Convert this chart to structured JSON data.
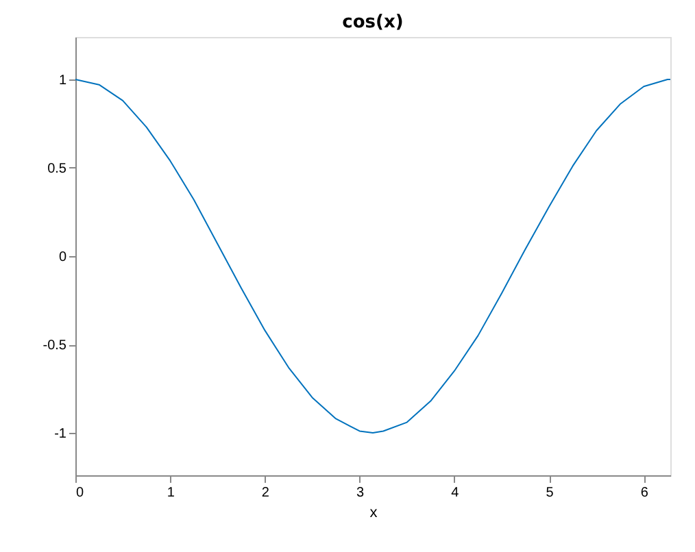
{
  "chart_data": {
    "type": "line",
    "title": "cos(x)",
    "xlabel": "x",
    "x": [
      0,
      0.25,
      0.5,
      0.75,
      1,
      1.25,
      1.5,
      1.75,
      2,
      2.25,
      2.5,
      2.75,
      3,
      3.14,
      3.25,
      3.5,
      3.75,
      4,
      4.25,
      4.5,
      4.75,
      5,
      5.25,
      5.5,
      5.75,
      6,
      6.25,
      6.28
    ],
    "series": [
      {
        "color": "#0072bd",
        "values": [
          1,
          0.97,
          0.88,
          0.73,
          0.54,
          0.32,
          0.07,
          -0.18,
          -0.42,
          -0.63,
          -0.8,
          -0.92,
          -0.99,
          -1,
          -0.99,
          -0.94,
          -0.82,
          -0.65,
          -0.45,
          -0.21,
          0.04,
          0.28,
          0.51,
          0.71,
          0.86,
          0.96,
          1,
          1
        ]
      }
    ],
    "xlim": [
      0,
      6.28
    ],
    "xticks": [
      0,
      1,
      2,
      3,
      4,
      5,
      6
    ],
    "ylim": [
      -1.24,
      1.24
    ],
    "yticks": [
      -1,
      -0.5,
      0,
      0.5,
      1
    ],
    "grid": false,
    "marker": "none",
    "line_style": "solid"
  }
}
